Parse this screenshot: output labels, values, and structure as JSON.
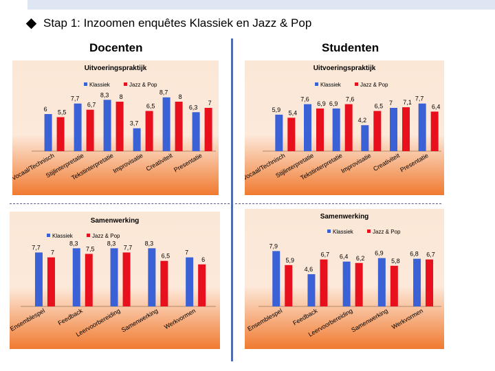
{
  "slide": {
    "title": "Stap 1: Inzoomen enquêtes Klassiek en Jazz & Pop",
    "left_heading": "Docenten",
    "right_heading": "Studenten"
  },
  "colors": {
    "klassiek": "#3a62d6",
    "jazz_pop": "#e8101c",
    "panel_top": "#fbe7d6",
    "panel_bottom": "#f07a30"
  },
  "chart_data": [
    {
      "id": "docenten-uitvoeringspraktijk",
      "type": "bar",
      "title": "Uitvoeringspraktijk",
      "categories": [
        "Vocaal/Technisch",
        "Stijlinterpretatie",
        "Tekstinterpretatie",
        "Improvisatie",
        "Creativiteit",
        "Presentatie"
      ],
      "series": [
        {
          "name": "Klassiek",
          "values": [
            6,
            7.7,
            8.3,
            3.7,
            8.7,
            6.3
          ]
        },
        {
          "name": "Jazz & Pop",
          "values": [
            5.5,
            6.7,
            8,
            6.5,
            8,
            7
          ]
        }
      ],
      "legend": "top-center",
      "grid": false,
      "ylim": [
        0,
        10
      ]
    },
    {
      "id": "studenten-uitvoeringspraktijk",
      "type": "bar",
      "title": "Uitvoeringspraktijk",
      "categories": [
        "Vocaal/Technisch",
        "Stijlinterpretatie",
        "Tekstinterpretatie",
        "Improvisatie",
        "Creativiteit",
        "Presentatie"
      ],
      "series": [
        {
          "name": "Klassiek",
          "values": [
            5.9,
            7.6,
            6.9,
            4.2,
            7.0,
            7.7
          ]
        },
        {
          "name": "Jazz & Pop",
          "values": [
            5.4,
            6.9,
            7.6,
            6.5,
            7.1,
            6.4
          ]
        }
      ],
      "legend": "top-center",
      "grid": false,
      "ylim": [
        0,
        10
      ]
    },
    {
      "id": "docenten-samenwerking",
      "type": "bar",
      "title": "Samenwerking",
      "categories": [
        "Ensemblespel",
        "Feedback",
        "Leervoorbereiding",
        "Samenwerking",
        "Werkvormen"
      ],
      "series": [
        {
          "name": "Klassiek",
          "values": [
            7.7,
            8.3,
            8.3,
            8.3,
            7
          ]
        },
        {
          "name": "Jazz & Pop",
          "values": [
            7,
            7.5,
            7.7,
            6.5,
            6
          ]
        }
      ],
      "legend": "top-left",
      "grid": false,
      "ylim": [
        0,
        10
      ]
    },
    {
      "id": "studenten-samenwerking",
      "type": "bar",
      "title": "Samenwerking",
      "categories": [
        "Ensemblespel",
        "Feedback",
        "Leervoorbereiding",
        "Samenwerking",
        "Werkvormen"
      ],
      "series": [
        {
          "name": "Klassiek",
          "values": [
            7.9,
            4.6,
            6.4,
            6.9,
            6.8
          ]
        },
        {
          "name": "Jazz & Pop",
          "values": [
            5.9,
            6.7,
            6.2,
            5.8,
            6.7
          ]
        }
      ],
      "legend": "top-right",
      "grid": false,
      "ylim": [
        0,
        10
      ]
    }
  ]
}
